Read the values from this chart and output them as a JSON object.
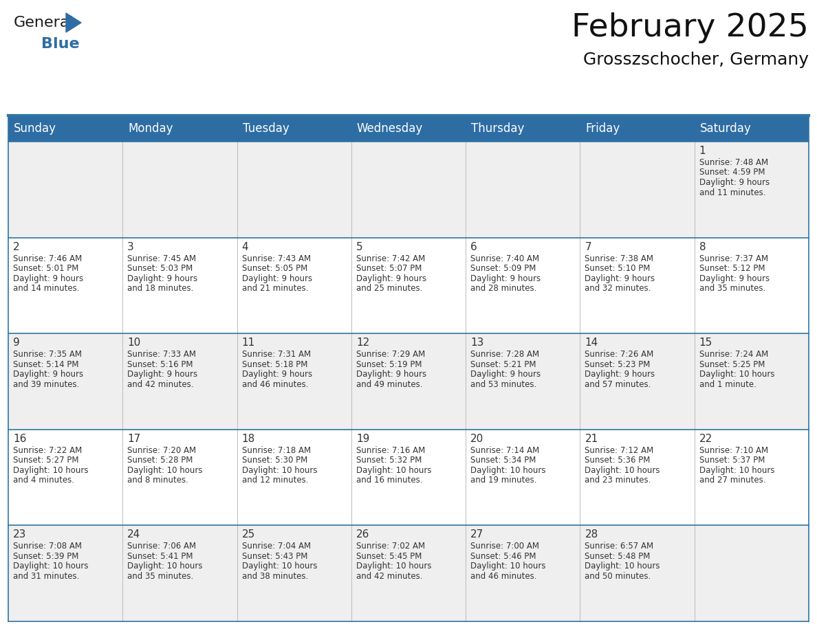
{
  "title": "February 2025",
  "subtitle": "Grosszschocher, Germany",
  "header_bg": "#2E6DA4",
  "header_text_color": "#FFFFFF",
  "cell_bg_odd": "#EFEFEF",
  "cell_bg_even": "#FFFFFF",
  "border_color": "#2E75A3",
  "text_color": "#333333",
  "day_names": [
    "Sunday",
    "Monday",
    "Tuesday",
    "Wednesday",
    "Thursday",
    "Friday",
    "Saturday"
  ],
  "weeks": [
    [
      {
        "day": "",
        "info": ""
      },
      {
        "day": "",
        "info": ""
      },
      {
        "day": "",
        "info": ""
      },
      {
        "day": "",
        "info": ""
      },
      {
        "day": "",
        "info": ""
      },
      {
        "day": "",
        "info": ""
      },
      {
        "day": "1",
        "info": "Sunrise: 7:48 AM\nSunset: 4:59 PM\nDaylight: 9 hours\nand 11 minutes."
      }
    ],
    [
      {
        "day": "2",
        "info": "Sunrise: 7:46 AM\nSunset: 5:01 PM\nDaylight: 9 hours\nand 14 minutes."
      },
      {
        "day": "3",
        "info": "Sunrise: 7:45 AM\nSunset: 5:03 PM\nDaylight: 9 hours\nand 18 minutes."
      },
      {
        "day": "4",
        "info": "Sunrise: 7:43 AM\nSunset: 5:05 PM\nDaylight: 9 hours\nand 21 minutes."
      },
      {
        "day": "5",
        "info": "Sunrise: 7:42 AM\nSunset: 5:07 PM\nDaylight: 9 hours\nand 25 minutes."
      },
      {
        "day": "6",
        "info": "Sunrise: 7:40 AM\nSunset: 5:09 PM\nDaylight: 9 hours\nand 28 minutes."
      },
      {
        "day": "7",
        "info": "Sunrise: 7:38 AM\nSunset: 5:10 PM\nDaylight: 9 hours\nand 32 minutes."
      },
      {
        "day": "8",
        "info": "Sunrise: 7:37 AM\nSunset: 5:12 PM\nDaylight: 9 hours\nand 35 minutes."
      }
    ],
    [
      {
        "day": "9",
        "info": "Sunrise: 7:35 AM\nSunset: 5:14 PM\nDaylight: 9 hours\nand 39 minutes."
      },
      {
        "day": "10",
        "info": "Sunrise: 7:33 AM\nSunset: 5:16 PM\nDaylight: 9 hours\nand 42 minutes."
      },
      {
        "day": "11",
        "info": "Sunrise: 7:31 AM\nSunset: 5:18 PM\nDaylight: 9 hours\nand 46 minutes."
      },
      {
        "day": "12",
        "info": "Sunrise: 7:29 AM\nSunset: 5:19 PM\nDaylight: 9 hours\nand 49 minutes."
      },
      {
        "day": "13",
        "info": "Sunrise: 7:28 AM\nSunset: 5:21 PM\nDaylight: 9 hours\nand 53 minutes."
      },
      {
        "day": "14",
        "info": "Sunrise: 7:26 AM\nSunset: 5:23 PM\nDaylight: 9 hours\nand 57 minutes."
      },
      {
        "day": "15",
        "info": "Sunrise: 7:24 AM\nSunset: 5:25 PM\nDaylight: 10 hours\nand 1 minute."
      }
    ],
    [
      {
        "day": "16",
        "info": "Sunrise: 7:22 AM\nSunset: 5:27 PM\nDaylight: 10 hours\nand 4 minutes."
      },
      {
        "day": "17",
        "info": "Sunrise: 7:20 AM\nSunset: 5:28 PM\nDaylight: 10 hours\nand 8 minutes."
      },
      {
        "day": "18",
        "info": "Sunrise: 7:18 AM\nSunset: 5:30 PM\nDaylight: 10 hours\nand 12 minutes."
      },
      {
        "day": "19",
        "info": "Sunrise: 7:16 AM\nSunset: 5:32 PM\nDaylight: 10 hours\nand 16 minutes."
      },
      {
        "day": "20",
        "info": "Sunrise: 7:14 AM\nSunset: 5:34 PM\nDaylight: 10 hours\nand 19 minutes."
      },
      {
        "day": "21",
        "info": "Sunrise: 7:12 AM\nSunset: 5:36 PM\nDaylight: 10 hours\nand 23 minutes."
      },
      {
        "day": "22",
        "info": "Sunrise: 7:10 AM\nSunset: 5:37 PM\nDaylight: 10 hours\nand 27 minutes."
      }
    ],
    [
      {
        "day": "23",
        "info": "Sunrise: 7:08 AM\nSunset: 5:39 PM\nDaylight: 10 hours\nand 31 minutes."
      },
      {
        "day": "24",
        "info": "Sunrise: 7:06 AM\nSunset: 5:41 PM\nDaylight: 10 hours\nand 35 minutes."
      },
      {
        "day": "25",
        "info": "Sunrise: 7:04 AM\nSunset: 5:43 PM\nDaylight: 10 hours\nand 38 minutes."
      },
      {
        "day": "26",
        "info": "Sunrise: 7:02 AM\nSunset: 5:45 PM\nDaylight: 10 hours\nand 42 minutes."
      },
      {
        "day": "27",
        "info": "Sunrise: 7:00 AM\nSunset: 5:46 PM\nDaylight: 10 hours\nand 46 minutes."
      },
      {
        "day": "28",
        "info": "Sunrise: 6:57 AM\nSunset: 5:48 PM\nDaylight: 10 hours\nand 50 minutes."
      },
      {
        "day": "",
        "info": ""
      }
    ]
  ],
  "logo_general_color": "#1a1a1a",
  "logo_blue_color": "#2E6DA4",
  "title_fontsize": 34,
  "subtitle_fontsize": 18,
  "header_fontsize": 12,
  "day_num_fontsize": 11,
  "info_fontsize": 8.5,
  "logo_fontsize": 16
}
